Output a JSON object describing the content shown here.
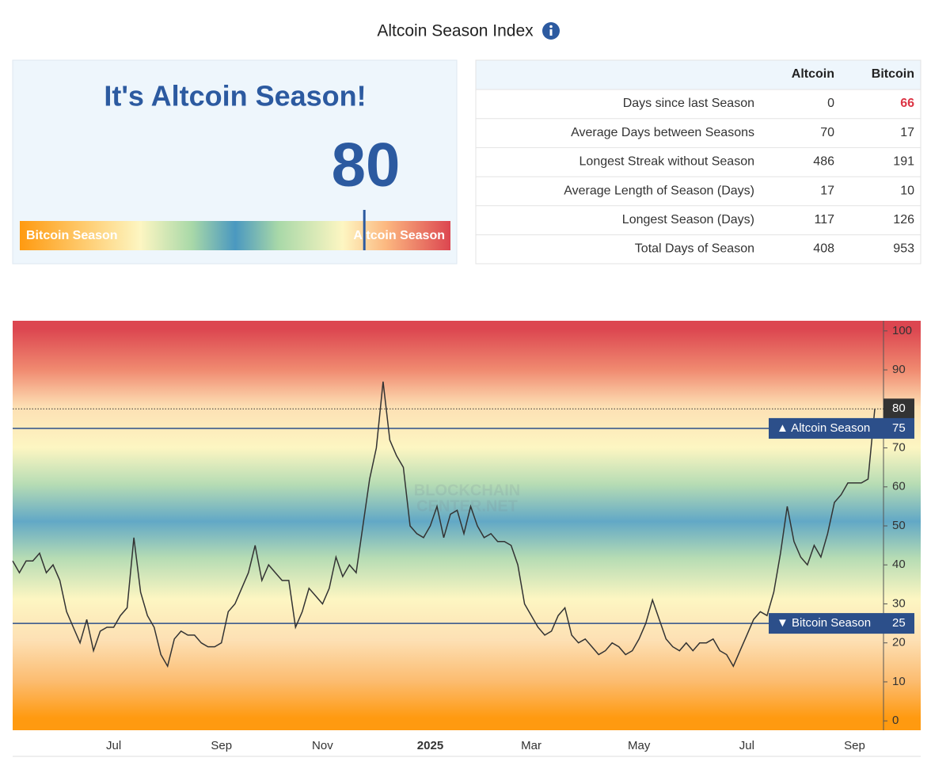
{
  "header": {
    "title": "Altcoin Season Index"
  },
  "gauge": {
    "headline": "It's Altcoin Season!",
    "value": 80,
    "scale": [
      0,
      100
    ],
    "left_label": "Bitcoin Season",
    "right_label": "Altcoin Season"
  },
  "stats": {
    "columns": [
      "Altcoin",
      "Bitcoin"
    ],
    "rows": [
      {
        "label": "Days since last Season",
        "values": [
          0,
          66
        ]
      },
      {
        "label": "Average Days between Seasons",
        "values": [
          70,
          17
        ]
      },
      {
        "label": "Longest Streak without Season",
        "values": [
          486,
          191
        ]
      },
      {
        "label": "Average Length of Season (Days)",
        "values": [
          17,
          10
        ]
      },
      {
        "label": "Longest Season (Days)",
        "values": [
          117,
          126
        ]
      },
      {
        "label": "Total Days of Season",
        "values": [
          408,
          953
        ]
      }
    ]
  },
  "chart_data": {
    "type": "line",
    "color": "#333333",
    "watermark": [
      "BLOCKCHAIN",
      "CENTER.NET"
    ],
    "categories": [
      null,
      null,
      null,
      null,
      null,
      null,
      null,
      null,
      null,
      null,
      null,
      null,
      null,
      null,
      null,
      "Jul",
      null,
      null,
      null,
      null,
      null,
      null,
      null,
      null,
      null,
      null,
      null,
      null,
      null,
      null,
      null,
      "Sep",
      null,
      null,
      null,
      null,
      null,
      null,
      null,
      null,
      null,
      null,
      null,
      null,
      null,
      null,
      "Nov",
      null,
      null,
      null,
      null,
      null,
      null,
      null,
      null,
      null,
      null,
      null,
      null,
      null,
      null,
      null,
      "2025",
      null,
      null,
      null,
      null,
      null,
      null,
      null,
      null,
      null,
      null,
      null,
      null,
      null,
      null,
      "Mar",
      null,
      null,
      null,
      null,
      null,
      null,
      null,
      null,
      null,
      null,
      null,
      null,
      null,
      null,
      null,
      "May",
      null,
      null,
      null,
      null,
      null,
      null,
      null,
      null,
      null,
      null,
      null,
      null,
      null,
      null,
      null,
      "Jul",
      null,
      null,
      null,
      null,
      null,
      null,
      null,
      null,
      null,
      null,
      null,
      null,
      null,
      null,
      null,
      "Sep",
      null,
      null,
      null
    ],
    "values": [
      41,
      38,
      41,
      41,
      43,
      38,
      40,
      36,
      28,
      24,
      20,
      26,
      18,
      23,
      24,
      24,
      27,
      29,
      47,
      33,
      27,
      24,
      17,
      14,
      21,
      23,
      22,
      22,
      20,
      19,
      19,
      20,
      28,
      30,
      34,
      38,
      45,
      36,
      40,
      38,
      36,
      36,
      24,
      28,
      34,
      32,
      30,
      34,
      42,
      37,
      40,
      38,
      50,
      62,
      70,
      87,
      72,
      68,
      65,
      50,
      48,
      47,
      50,
      55,
      47,
      53,
      54,
      48,
      55,
      50,
      47,
      48,
      46,
      46,
      45,
      40,
      30,
      27,
      24,
      22,
      23,
      27,
      29,
      22,
      20,
      21,
      19,
      17,
      18,
      20,
      19,
      17,
      18,
      21,
      25,
      31,
      26,
      21,
      19,
      18,
      20,
      18,
      20,
      20,
      21,
      18,
      17,
      14,
      18,
      22,
      26,
      28,
      27,
      33,
      43,
      55,
      46,
      42,
      40,
      45,
      42,
      48,
      56,
      58,
      61,
      61,
      61,
      62,
      80
    ],
    "ylim": [
      -2.4,
      102.6
    ],
    "yticks": [
      0,
      10,
      20,
      30,
      40,
      50,
      60,
      70,
      80,
      90,
      100
    ],
    "thresholds": [
      {
        "name": "▲ Altcoin Season",
        "value": 75
      },
      {
        "name": "▼ Bitcoin Season",
        "value": 25
      }
    ]
  }
}
